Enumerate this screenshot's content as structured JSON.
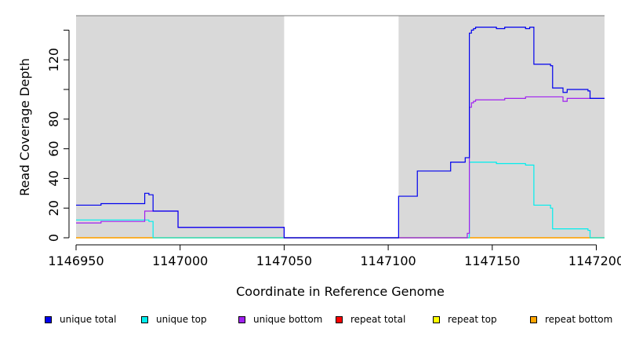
{
  "chart_data": {
    "type": "line",
    "title": "",
    "xlabel": "Coordinate in Reference Genome",
    "ylabel": "Read Coverage Depth",
    "xlim": [
      1146950,
      1147204
    ],
    "ylim": [
      0,
      142
    ],
    "x_ticks": [
      1146950,
      1147000,
      1147050,
      1147100,
      1147150,
      1147200
    ],
    "x_tick_labels": [
      "1146950",
      "1147000",
      "1147050",
      "1147100",
      "1147150",
      "1147200"
    ],
    "y_ticks": [
      0,
      20,
      40,
      60,
      80,
      100,
      120,
      140
    ],
    "y_tick_labels": [
      "0",
      "20",
      "40",
      "60",
      "80",
      "",
      "120",
      ""
    ],
    "shaded_regions": [
      {
        "x0": 1146950,
        "x1": 1147050,
        "color": "#d9d9d9"
      },
      {
        "x0": 1147105,
        "x1": 1147204,
        "color": "#d9d9d9"
      }
    ],
    "series": [
      {
        "name": "unique total",
        "color": "#0000ee",
        "x": [
          1146950,
          1146962,
          1146983,
          1146985,
          1146987,
          1146999,
          1147050,
          1147105,
          1147114,
          1147130,
          1147137,
          1147139,
          1147140,
          1147141,
          1147142,
          1147145,
          1147152,
          1147156,
          1147166,
          1147168,
          1147170,
          1147178,
          1147179,
          1147184,
          1147186,
          1147195,
          1147196,
          1147197,
          1147204
        ],
        "y": [
          22,
          23,
          30,
          29,
          18,
          7,
          0,
          28,
          45,
          51,
          54,
          138,
          140,
          141,
          142,
          142,
          141,
          142,
          141,
          142,
          117,
          116,
          101,
          98,
          100,
          100,
          99,
          94,
          94
        ]
      },
      {
        "name": "unique top",
        "color": "#00eeee",
        "x": [
          1146950,
          1146962,
          1146983,
          1146985,
          1146987,
          1146999,
          1147050,
          1147105,
          1147138,
          1147139,
          1147152,
          1147156,
          1147166,
          1147168,
          1147170,
          1147178,
          1147179,
          1147195,
          1147196,
          1147197,
          1147204
        ],
        "y": [
          12,
          12,
          12,
          11,
          0,
          0,
          0,
          0,
          0,
          51,
          50,
          50,
          49,
          49,
          22,
          20,
          6,
          6,
          5,
          0,
          0
        ]
      },
      {
        "name": "unique bottom",
        "color": "#a020f0",
        "x": [
          1146950,
          1146962,
          1146983,
          1146985,
          1146987,
          1146999,
          1147050,
          1147105,
          1147136,
          1147138,
          1147139,
          1147140,
          1147141,
          1147142,
          1147156,
          1147166,
          1147184,
          1147186,
          1147204
        ],
        "y": [
          10,
          11,
          18,
          18,
          18,
          7,
          0,
          0,
          0,
          3,
          88,
          91,
          92,
          93,
          94,
          95,
          92,
          94,
          94
        ]
      },
      {
        "name": "repeat total",
        "color": "#ff0000",
        "x": [
          1146950,
          1147204
        ],
        "y": [
          0,
          0
        ]
      },
      {
        "name": "repeat top",
        "color": "#ffff00",
        "x": [
          1146950,
          1147204
        ],
        "y": [
          0,
          0
        ]
      },
      {
        "name": "repeat bottom",
        "color": "#ffa500",
        "x": [
          1146950,
          1147204
        ],
        "y": [
          0,
          0
        ]
      }
    ],
    "legend_position": "bottom"
  },
  "legend": [
    {
      "label": "unique total",
      "color": "#0000ee"
    },
    {
      "label": "unique top",
      "color": "#00eeee"
    },
    {
      "label": "unique bottom",
      "color": "#a020f0"
    },
    {
      "label": "repeat total",
      "color": "#ff0000"
    },
    {
      "label": "repeat top",
      "color": "#ffff00"
    },
    {
      "label": "repeat bottom",
      "color": "#ffa500"
    }
  ]
}
